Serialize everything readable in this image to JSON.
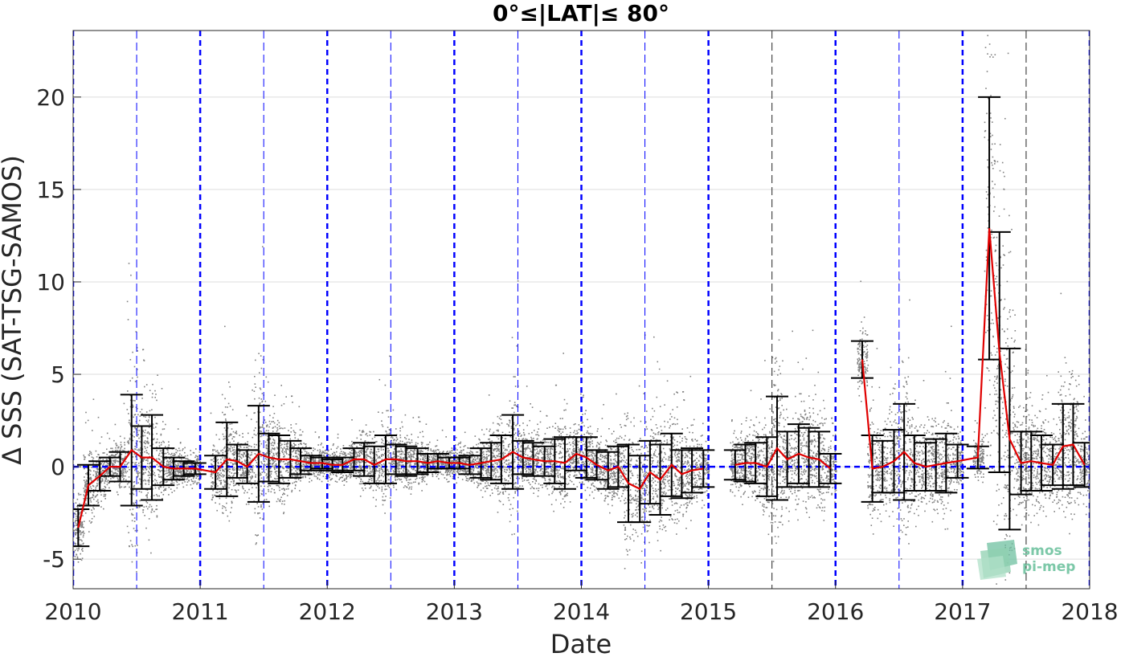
{
  "chart_data": {
    "type": "scatter",
    "title": "0°≤|LAT|≤ 80°",
    "xlabel": "Date",
    "ylabel": "Δ SSS (SAT-TSG-SAMOS)",
    "xlim": [
      2010.0,
      2018.0
    ],
    "ylim": [
      -6.6,
      23.6
    ],
    "x_ticks": [
      "2010",
      "2011",
      "2012",
      "2013",
      "2014",
      "2015",
      "2016",
      "2017",
      "2018"
    ],
    "y_ticks": [
      "-5",
      "0",
      "5",
      "10",
      "15",
      "20"
    ],
    "grid": "horizontal",
    "colors": {
      "scatter": "#808080",
      "mean_line": "#e00000",
      "error_bars": "#000000",
      "year_lines": "#0000ff",
      "zero_line": "#0000ff"
    },
    "series": [
      {
        "kind": "monthly_mean",
        "x": [
          2010.04,
          2010.12,
          2010.21,
          2010.29,
          2010.37,
          2010.46,
          2010.54,
          2010.62,
          2010.71,
          2010.79,
          2010.87,
          2010.96,
          2011.12,
          2011.21,
          2011.29,
          2011.37,
          2011.46,
          2011.54,
          2011.62,
          2011.71,
          2011.79,
          2011.87,
          2011.96,
          2012.04,
          2012.12,
          2012.21,
          2012.29,
          2012.37,
          2012.46,
          2012.54,
          2012.62,
          2012.71,
          2012.79,
          2012.87,
          2012.96,
          2013.04,
          2013.12,
          2013.21,
          2013.29,
          2013.37,
          2013.46,
          2013.54,
          2013.62,
          2013.71,
          2013.79,
          2013.87,
          2013.96,
          2014.04,
          2014.12,
          2014.21,
          2014.29,
          2014.37,
          2014.46,
          2014.54,
          2014.62,
          2014.71,
          2014.79,
          2014.87,
          2014.96,
          2015.21,
          2015.29,
          2015.37,
          2015.46,
          2015.54,
          2015.62,
          2015.71,
          2015.79,
          2015.87,
          2015.96,
          2016.21,
          2016.29,
          2016.37,
          2016.46,
          2016.54,
          2016.62,
          2016.71,
          2016.79,
          2016.87,
          2016.96,
          2017.12,
          2017.21,
          2017.29,
          2017.37,
          2017.46,
          2017.54,
          2017.62,
          2017.71,
          2017.79,
          2017.87,
          2017.96
        ],
        "y": [
          -3.3,
          -1.0,
          -0.5,
          0.0,
          0.0,
          0.9,
          0.5,
          0.5,
          0.0,
          -0.1,
          -0.1,
          -0.1,
          -0.3,
          0.4,
          0.3,
          0.0,
          0.7,
          0.5,
          0.4,
          0.4,
          0.3,
          0.2,
          0.2,
          0.1,
          0.1,
          0.4,
          0.4,
          0.1,
          0.4,
          0.4,
          0.3,
          0.3,
          0.2,
          0.3,
          0.2,
          0.2,
          0.1,
          0.2,
          0.3,
          0.4,
          0.8,
          0.5,
          0.4,
          0.3,
          0.3,
          0.2,
          0.7,
          0.5,
          0.1,
          -0.2,
          0.0,
          -0.9,
          -1.2,
          -0.3,
          -0.7,
          0.1,
          -0.4,
          -0.2,
          -0.1,
          0.1,
          0.2,
          0.2,
          0.0,
          1.0,
          0.4,
          0.7,
          0.5,
          0.4,
          -0.1,
          5.8,
          -0.1,
          0.0,
          0.3,
          0.8,
          0.2,
          0.0,
          0.1,
          0.2,
          0.3,
          0.5,
          12.9,
          6.2,
          1.5,
          0.2,
          0.3,
          0.2,
          0.1,
          1.1,
          1.2,
          0.1
        ],
        "err": [
          1.0,
          1.1,
          0.8,
          0.5,
          0.8,
          3.0,
          1.7,
          2.3,
          1.0,
          0.6,
          0.4,
          0.3,
          0.9,
          2.0,
          0.9,
          0.9,
          2.6,
          1.3,
          1.3,
          1.0,
          0.7,
          0.4,
          0.3,
          0.3,
          0.4,
          0.6,
          0.9,
          1.0,
          1.3,
          0.8,
          0.8,
          0.7,
          0.5,
          0.4,
          0.3,
          0.3,
          0.5,
          0.8,
          1.0,
          1.3,
          2.0,
          0.9,
          0.9,
          0.8,
          1.2,
          1.4,
          0.9,
          1.1,
          0.8,
          1.0,
          1.1,
          2.1,
          1.8,
          1.7,
          1.9,
          1.7,
          1.3,
          1.2,
          1.0,
          0.8,
          1.0,
          1.1,
          1.6,
          2.8,
          1.5,
          1.6,
          1.6,
          1.5,
          0.8,
          1.0,
          1.8,
          1.4,
          1.7,
          2.6,
          1.5,
          1.3,
          1.4,
          1.6,
          0.9,
          0.6,
          7.1,
          6.5,
          4.9,
          1.7,
          1.6,
          1.5,
          1.1,
          2.3,
          2.2,
          1.2
        ]
      }
    ]
  },
  "logo": {
    "line1": "smos",
    "line2": "pi-mep"
  }
}
